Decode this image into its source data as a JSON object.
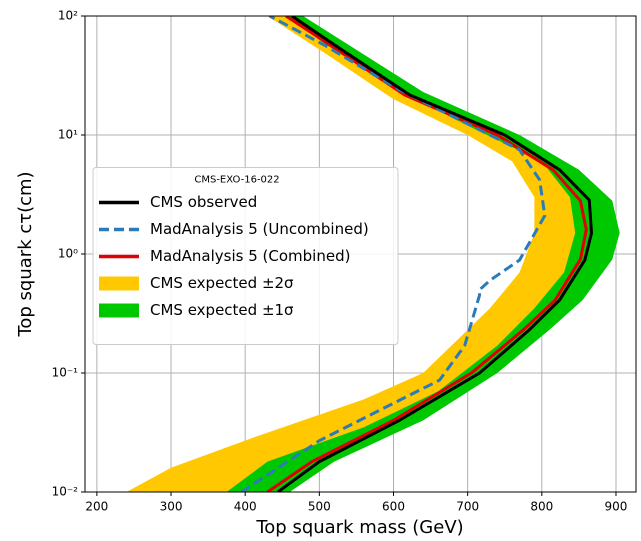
{
  "chart_data": {
    "type": "line",
    "xlabel": "Top squark mass (GeV)",
    "ylabel": "Top squark cτ(cm)",
    "xlim": [
      184,
      927
    ],
    "ylim": [
      0.01,
      100
    ],
    "ylog": true,
    "grid": true,
    "xticks": [
      200,
      300,
      400,
      500,
      600,
      700,
      800,
      900
    ],
    "yticks": [
      {
        "value": 0.01,
        "label": "10⁻²"
      },
      {
        "value": 0.1,
        "label": "10⁻¹"
      },
      {
        "value": 1,
        "label": "10⁰"
      },
      {
        "value": 10,
        "label": "10¹"
      },
      {
        "value": 100,
        "label": "10²"
      }
    ],
    "legend_title": "CMS-EXO-16-022",
    "legend_loc": "center left",
    "series": [
      {
        "name": "CMS observed",
        "color": "#000000",
        "style": "solid",
        "x": [
          444,
          500,
          608,
          716,
          783,
          824,
          858,
          867,
          864,
          824,
          750,
          622,
          521,
          463
        ],
        "values": [
          0.01,
          0.018,
          0.04,
          0.1,
          0.23,
          0.41,
          0.89,
          1.5,
          2.84,
          5.1,
          10,
          21.7,
          56.9,
          100
        ]
      },
      {
        "name": "MadAnalysis 5 (Uncombined)",
        "color": "#2b7bb9",
        "style": "dashed",
        "x": [
          395,
          500,
          608,
          662,
          696,
          716,
          716,
          730,
          770,
          804,
          797,
          770,
          730,
          608,
          507,
          433
        ],
        "values": [
          0.01,
          0.027,
          0.059,
          0.087,
          0.17,
          0.45,
          0.5,
          0.6,
          0.89,
          2.1,
          4.2,
          7.5,
          10,
          23.9,
          56.9,
          100
        ]
      },
      {
        "name": "MadAnalysis 5 (Combined)",
        "color": "#e00000",
        "style": "solid",
        "x": [
          430,
          490,
          600,
          705,
          775,
          818,
          852,
          860,
          852,
          815,
          740,
          615,
          515,
          455
        ],
        "values": [
          0.01,
          0.018,
          0.04,
          0.1,
          0.23,
          0.41,
          0.9,
          1.6,
          2.8,
          5.1,
          10,
          21.7,
          56.9,
          100
        ]
      },
      {
        "name": "CMS expected  ±2σ",
        "color": "#ffc800",
        "style": "fill",
        "x": [
          455,
          510,
          600,
          700,
          800,
          838,
          845,
          830,
          790,
          740,
          660,
          560,
          430,
          375,
          240,
          300,
          420,
          560,
          640,
          690,
          730,
          770,
          790,
          790,
          760,
          700,
          600,
          505,
          430
        ],
        "values": [
          100,
          56.9,
          25,
          12,
          6,
          3,
          1.5,
          0.7,
          0.35,
          0.17,
          0.07,
          0.035,
          0.018,
          0.01,
          0.01,
          0.016,
          0.03,
          0.06,
          0.1,
          0.2,
          0.35,
          0.7,
          1.5,
          3,
          6,
          10,
          20,
          50,
          100
        ]
      },
      {
        "name": "CMS expected  ±1σ",
        "color": "#00c800",
        "style": "fill",
        "x": [
          478,
          540,
          640,
          770,
          850,
          895,
          905,
          895,
          855,
          810,
          740,
          640,
          520,
          460,
          255,
          330,
          480,
          620,
          700,
          760,
          800,
          820,
          815,
          780,
          700,
          600,
          505,
          445
        ],
        "values": [
          100,
          56.9,
          23,
          10,
          5.1,
          2.8,
          1.5,
          0.9,
          0.41,
          0.23,
          0.1,
          0.04,
          0.018,
          0.01,
          0.01,
          0.018,
          0.04,
          0.07,
          0.12,
          0.3,
          0.7,
          1.5,
          3,
          6,
          12,
          24,
          56.9,
          100
        ]
      }
    ]
  }
}
